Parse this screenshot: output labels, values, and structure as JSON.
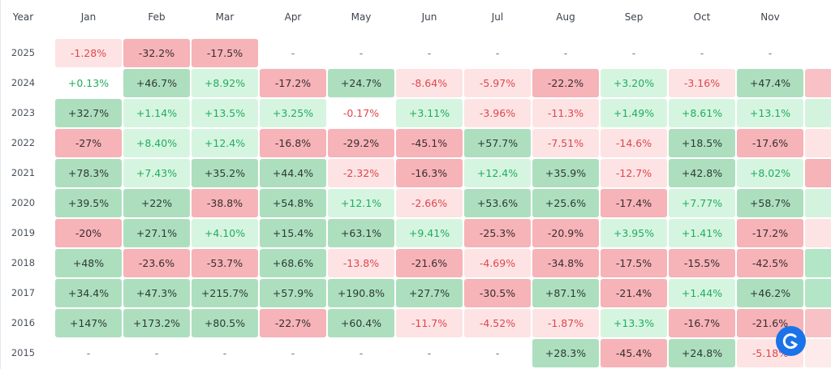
{
  "header": {
    "columns": [
      "Year",
      "Jan",
      "Feb",
      "Mar",
      "Apr",
      "May",
      "Jun",
      "Jul",
      "Aug",
      "Sep",
      "Oct",
      "Nov"
    ]
  },
  "table": {
    "rows": [
      {
        "year": "2025",
        "cells": [
          "-1.28%",
          "-32.2%",
          "-17.5%",
          "-",
          "-",
          "-",
          "-",
          "-",
          "-",
          "-",
          "-"
        ]
      },
      {
        "year": "2024",
        "cells": [
          "+0.13%",
          "+46.7%",
          "+8.92%",
          "-17.2%",
          "+24.7%",
          "-8.64%",
          "-5.97%",
          "-22.2%",
          "+3.20%",
          "-3.16%",
          "+47.4%"
        ]
      },
      {
        "year": "2023",
        "cells": [
          "+32.7%",
          "+1.14%",
          "+13.5%",
          "+3.25%",
          "-0.17%",
          "+3.11%",
          "-3.96%",
          "-11.3%",
          "+1.49%",
          "+8.61%",
          "+13.1%"
        ]
      },
      {
        "year": "2022",
        "cells": [
          "-27%",
          "+8.40%",
          "+12.4%",
          "-16.8%",
          "-29.2%",
          "-45.1%",
          "+57.7%",
          "-7.51%",
          "-14.6%",
          "+18.5%",
          "-17.6%"
        ]
      },
      {
        "year": "2021",
        "cells": [
          "+78.3%",
          "+7.43%",
          "+35.2%",
          "+44.4%",
          "-2.32%",
          "-16.3%",
          "+12.4%",
          "+35.9%",
          "-12.7%",
          "+42.8%",
          "+8.02%"
        ]
      },
      {
        "year": "2020",
        "cells": [
          "+39.5%",
          "+22%",
          "-38.8%",
          "+54.8%",
          "+12.1%",
          "-2.66%",
          "+53.6%",
          "+25.6%",
          "-17.4%",
          "+7.77%",
          "+58.7%"
        ]
      },
      {
        "year": "2019",
        "cells": [
          "-20%",
          "+27.1%",
          "+4.10%",
          "+15.4%",
          "+63.1%",
          "+9.41%",
          "-25.3%",
          "-20.9%",
          "+3.95%",
          "+1.41%",
          "-17.2%"
        ]
      },
      {
        "year": "2018",
        "cells": [
          "+48%",
          "-23.6%",
          "-53.7%",
          "+68.6%",
          "-13.8%",
          "-21.6%",
          "-4.69%",
          "-34.8%",
          "-17.5%",
          "-15.5%",
          "-42.5%"
        ]
      },
      {
        "year": "2017",
        "cells": [
          "+34.4%",
          "+47.3%",
          "+215.7%",
          "+57.9%",
          "+190.8%",
          "+27.7%",
          "-30.5%",
          "+87.1%",
          "-21.4%",
          "+1.44%",
          "+46.2%"
        ]
      },
      {
        "year": "2016",
        "cells": [
          "+147%",
          "+173.2%",
          "+80.5%",
          "-22.7%",
          "+60.4%",
          "-11.7%",
          "-4.52%",
          "-1.87%",
          "+13.3%",
          "-16.7%",
          "-21.6%"
        ]
      },
      {
        "year": "2015",
        "cells": [
          "-",
          "-",
          "-",
          "-",
          "-",
          "-",
          "-",
          "+28.3%",
          "-45.4%",
          "+24.8%",
          "-5.18%"
        ]
      }
    ]
  }
}
